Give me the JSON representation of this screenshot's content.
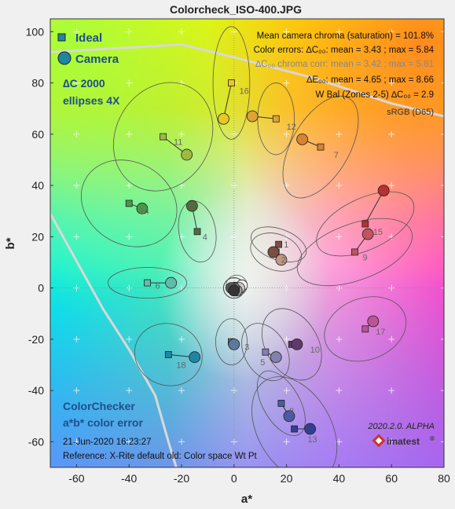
{
  "window": {
    "title": "Colorcheck_ISO-400.JPG"
  },
  "chart_data": {
    "type": "scatter",
    "title": "Colorcheck_ISO-400.JPG",
    "xlabel": "a*",
    "ylabel": "b*",
    "xlim": [
      -70,
      80
    ],
    "ylim": [
      -70,
      105
    ],
    "xticks": [
      -60,
      -40,
      -20,
      0,
      20,
      40,
      60,
      80
    ],
    "yticks": [
      -60,
      -40,
      -20,
      0,
      20,
      40,
      60,
      80,
      100
    ],
    "grid": true,
    "legend": {
      "placement": "top-left",
      "entries": [
        {
          "label": "Ideal",
          "marker": "square"
        },
        {
          "label": "Camera",
          "marker": "circle"
        }
      ],
      "note_line1": "∆C 2000",
      "note_line2": "ellipses 4X"
    },
    "stats": {
      "line1": "Mean camera chroma (saturation) = 101.8%",
      "line2": "Color errors:  ∆C₀₀:  mean = 3.43 ;  max = 5.84",
      "line3": "∆C₀₀ chroma corr:  mean = 3.42 ;  max = 5.81",
      "line4": "∆E₀₀:  mean = 4.65 ;  max = 8.66",
      "line5": "W Bal (Zones 2-5) ∆C₀₀ = 2.9",
      "line6": "sRGB (D65)"
    },
    "caption": {
      "line1": "ColorChecker",
      "line2": "a*b* color error",
      "line3": "21-Jun-2020 16:23:27",
      "line4": "Reference: X-Rite default old: Color space Wt Pt"
    },
    "version": "2020.2.0. ALPHA",
    "brand": "imatest",
    "gamut_boundary": {
      "srgb": [
        [
          -70,
          29
        ],
        [
          -50,
          -8
        ],
        [
          -40,
          -24
        ],
        [
          -30,
          -42
        ],
        [
          -25,
          -60
        ],
        [
          -22,
          -70
        ]
      ],
      "upper": [
        [
          -70,
          92
        ],
        [
          -20,
          95
        ],
        [
          0,
          90
        ],
        [
          30,
          82
        ],
        [
          60,
          72
        ],
        [
          80,
          67
        ]
      ]
    },
    "patches": [
      {
        "id": "1",
        "ideal": [
          17,
          17
        ],
        "camera": [
          15,
          14
        ],
        "color": "#7b4e44",
        "ell": [
          11,
          6,
          -20
        ]
      },
      {
        "id": "2",
        "ideal": [
          16,
          14
        ],
        "camera": [
          18,
          11
        ],
        "color": "#c39782",
        "ell": [
          10,
          7,
          -20
        ]
      },
      {
        "id": "3",
        "ideal": [
          -1,
          -21
        ],
        "camera": [
          0,
          -22
        ],
        "color": "#5d7a9d",
        "ell": [
          6,
          9,
          0
        ]
      },
      {
        "id": "4",
        "ideal": [
          -14,
          22
        ],
        "camera": [
          -16,
          32
        ],
        "color": "#536b41",
        "ell": [
          7,
          12,
          10
        ]
      },
      {
        "id": "5",
        "ideal": [
          12,
          -25
        ],
        "camera": [
          16,
          -27
        ],
        "color": "#8380b1",
        "ell": [
          8,
          12,
          30
        ]
      },
      {
        "id": "6",
        "ideal": [
          -33,
          2
        ],
        "camera": [
          -24,
          2
        ],
        "color": "#5fbdaa",
        "ell": [
          15,
          6,
          0
        ]
      },
      {
        "id": "7",
        "ideal": [
          33,
          55
        ],
        "camera": [
          26,
          58
        ],
        "color": "#d68333",
        "ell": [
          11,
          22,
          -30
        ]
      },
      {
        "id": "8",
        "ideal": [
          18,
          -45
        ],
        "camera": [
          21,
          -50
        ],
        "color": "#4a5aa6",
        "ell": [
          7,
          14,
          30
        ]
      },
      {
        "id": "9",
        "ideal": [
          46,
          14
        ],
        "camera": [
          51,
          21
        ],
        "color": "#c2545f",
        "ell": [
          23,
          11,
          20
        ]
      },
      {
        "id": "10",
        "ideal": [
          22,
          -22
        ],
        "camera": [
          24,
          -22
        ],
        "color": "#5e3b6b",
        "ell": [
          10,
          15,
          30
        ]
      },
      {
        "id": "11",
        "ideal": [
          -27,
          59
        ],
        "camera": [
          -18,
          52
        ],
        "color": "#9dbb40",
        "ell": [
          18,
          22,
          -30
        ]
      },
      {
        "id": "12",
        "ideal": [
          16,
          66
        ],
        "camera": [
          7,
          67
        ],
        "color": "#e0a233",
        "ell": [
          7,
          14,
          0
        ]
      },
      {
        "id": "13",
        "ideal": [
          23,
          -55
        ],
        "camera": [
          29,
          -55
        ],
        "color": "#343f94",
        "ell": [
          14,
          22,
          30
        ]
      },
      {
        "id": "14",
        "ideal": [
          -40,
          33
        ],
        "camera": [
          -35,
          31
        ],
        "color": "#4a9646",
        "ell": [
          19,
          16,
          -30
        ]
      },
      {
        "id": "15",
        "ideal": [
          50,
          25
        ],
        "camera": [
          57,
          38
        ],
        "color": "#b73133",
        "ell": [
          20,
          10,
          25
        ]
      },
      {
        "id": "16",
        "ideal": [
          -1,
          80
        ],
        "camera": [
          -4,
          66
        ],
        "color": "#e8c823",
        "ell": [
          7,
          22,
          0
        ]
      },
      {
        "id": "17",
        "ideal": [
          50,
          -16
        ],
        "camera": [
          53,
          -13
        ],
        "color": "#bc5497",
        "ell": [
          16,
          12,
          20
        ]
      },
      {
        "id": "18",
        "ideal": [
          -25,
          -26
        ],
        "camera": [
          -15,
          -27
        ],
        "color": "#1d87a3",
        "ell": [
          13,
          12,
          -20
        ]
      },
      {
        "id": "19",
        "ideal": [
          1,
          1
        ],
        "camera": [
          3,
          1
        ],
        "color": "#f3f2ef",
        "ell": [
          4,
          4,
          0
        ]
      },
      {
        "id": "20",
        "ideal": [
          0,
          0
        ],
        "camera": [
          2,
          0
        ],
        "color": "#c8c8c8",
        "ell": [
          4,
          4,
          0
        ]
      },
      {
        "id": "21",
        "ideal": [
          0,
          0
        ],
        "camera": [
          1,
          -1
        ],
        "color": "#a0a0a0",
        "ell": [
          4,
          4,
          0
        ]
      },
      {
        "id": "22",
        "ideal": [
          0,
          0
        ],
        "camera": [
          0,
          0
        ],
        "color": "#7a7a79",
        "ell": [
          4,
          4,
          0
        ]
      },
      {
        "id": "23",
        "ideal": [
          0,
          0
        ],
        "camera": [
          -1,
          0
        ],
        "color": "#555555",
        "ell": [
          4,
          4,
          0
        ]
      },
      {
        "id": "24",
        "ideal": [
          0,
          0
        ],
        "camera": [
          0,
          -1
        ],
        "color": "#343434",
        "ell": [
          4,
          4,
          0
        ]
      }
    ],
    "label_offsets": {
      "1": [
        2,
        0
      ],
      "2": [
        2,
        -3
      ],
      "3": [
        5,
        -2
      ],
      "4": [
        2,
        -2
      ],
      "5": [
        -2,
        -4
      ],
      "6": [
        3,
        -1
      ],
      "7": [
        5,
        -3
      ],
      "8": [
        3,
        -3
      ],
      "9": [
        3,
        -2
      ],
      "10": [
        7,
        -2
      ],
      "11": [
        4,
        -2
      ],
      "12": [
        4,
        -3
      ],
      "13": [
        5,
        -4
      ],
      "14": [
        4,
        -3
      ],
      "15": [
        3,
        -3
      ],
      "16": [
        3,
        -3
      ],
      "17": [
        4,
        -1
      ],
      "18": [
        3,
        -4
      ]
    }
  }
}
